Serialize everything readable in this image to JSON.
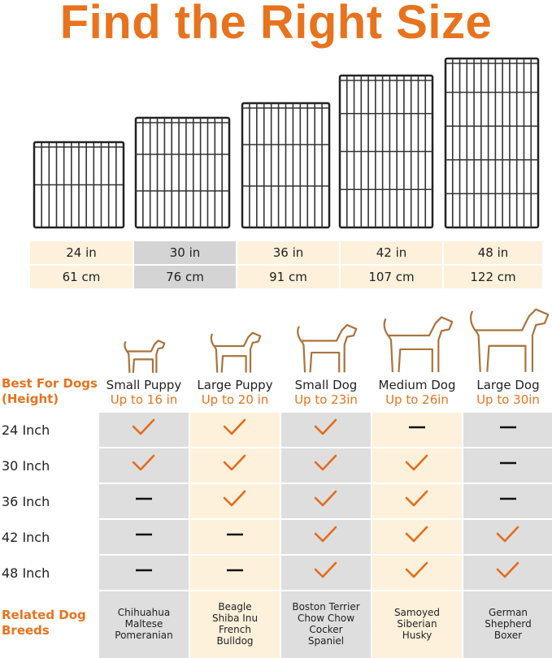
{
  "title": "Find the Right Size",
  "sizes": [
    {
      "inch": "24 in",
      "cm": "61 cm"
    },
    {
      "inch": "30 in",
      "cm": "76 cm"
    },
    {
      "inch": "36 in",
      "cm": "91 cm"
    },
    {
      "inch": "42 in",
      "cm": "107 cm"
    },
    {
      "inch": "48 in",
      "cm": "122 cm"
    }
  ],
  "comparison": {
    "header_label": "Best For Dogs (Height)",
    "columns": [
      {
        "name": "Small Puppy",
        "height": "Up to 16 in",
        "breeds": [
          "Chihuahua",
          "Maltese",
          "Pomeranian"
        ]
      },
      {
        "name": "Large Puppy",
        "height": "Up to 20 in",
        "breeds": [
          "Beagle",
          "Shiba Inu",
          "French Bulldog"
        ]
      },
      {
        "name": "Small Dog",
        "height": "Up to 23in",
        "breeds": [
          "Boston Terrier",
          "Chow Chow",
          "Cocker Spaniel"
        ]
      },
      {
        "name": "Medium Dog",
        "height": "Up to 26in",
        "breeds": [
          "Samoyed",
          "Siberian Husky"
        ]
      },
      {
        "name": "Large Dog",
        "height": "Up to 30in",
        "breeds": [
          "German Shepherd",
          "Boxer"
        ]
      }
    ],
    "rows": [
      {
        "label": "24 Inch",
        "fits": [
          true,
          true,
          true,
          false,
          false
        ]
      },
      {
        "label": "30 Inch",
        "fits": [
          true,
          true,
          true,
          true,
          false
        ]
      },
      {
        "label": "36 Inch",
        "fits": [
          false,
          true,
          true,
          true,
          false
        ]
      },
      {
        "label": "42 Inch",
        "fits": [
          false,
          false,
          true,
          true,
          true
        ]
      },
      {
        "label": "48 Inch",
        "fits": [
          false,
          false,
          true,
          true,
          true
        ]
      }
    ],
    "breeds_label": "Related Dog Breeds"
  }
}
